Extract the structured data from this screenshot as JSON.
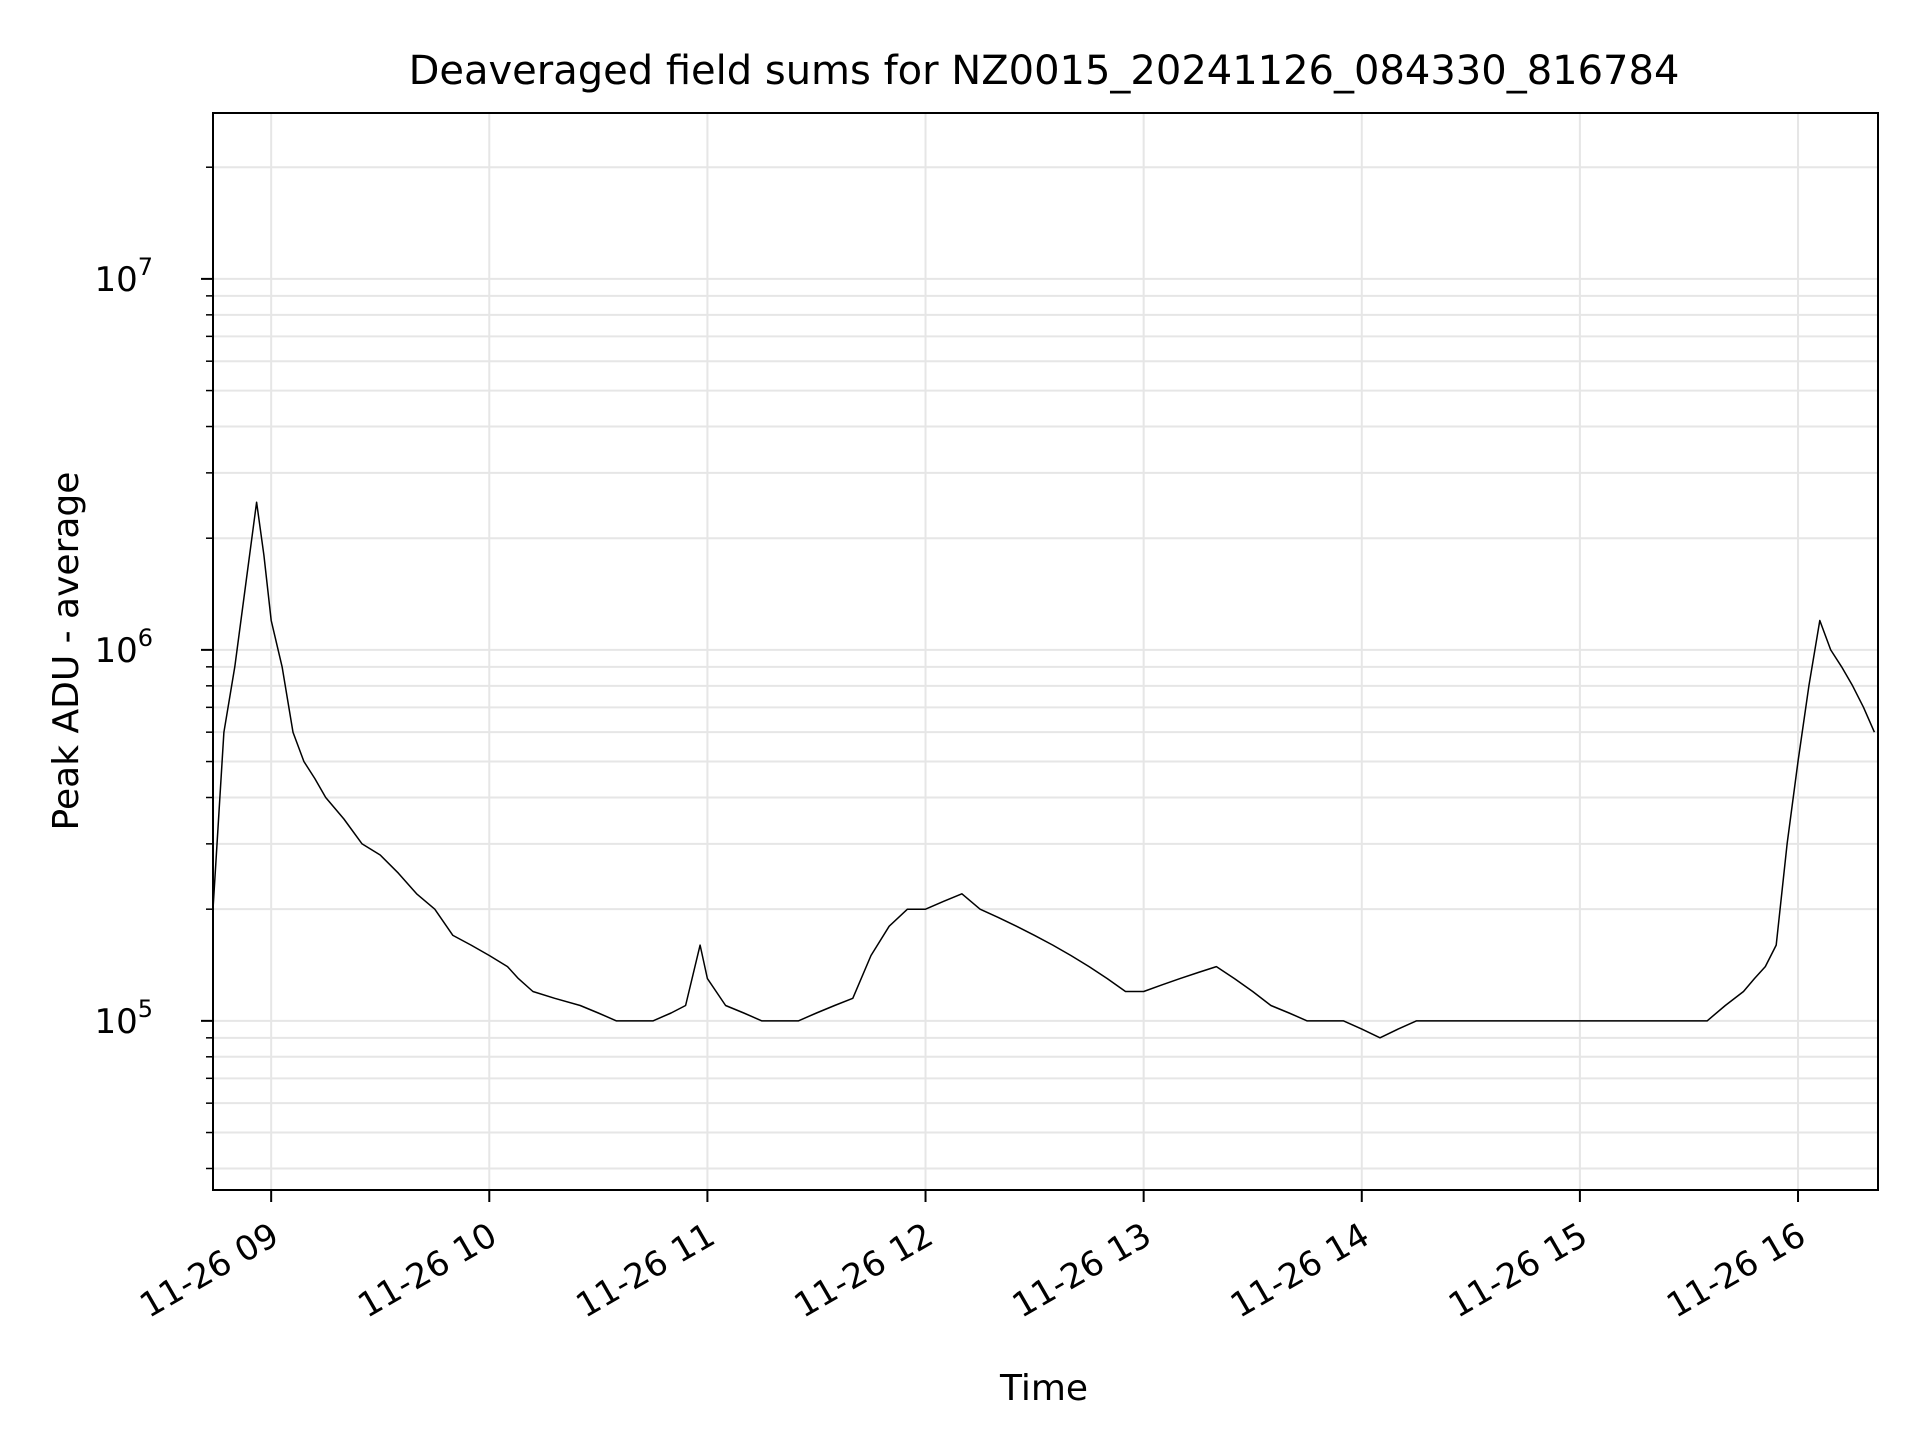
{
  "chart_data": {
    "type": "line",
    "title": "Deaveraged field sums for NZ0015_20241126_084330_816784",
    "xlabel": "Time",
    "ylabel": "Peak ADU - average",
    "yscale": "log",
    "xlim": [
      "2024-11-26 08:44",
      "2024-11-26 16:22"
    ],
    "ylim": [
      35000,
      28000000
    ],
    "grid": true,
    "line_color": "#000000",
    "x_ticks": [
      {
        "value": "2024-11-26 09:00",
        "label": "11-26 09"
      },
      {
        "value": "2024-11-26 10:00",
        "label": "11-26 10"
      },
      {
        "value": "2024-11-26 11:00",
        "label": "11-26 11"
      },
      {
        "value": "2024-11-26 12:00",
        "label": "11-26 12"
      },
      {
        "value": "2024-11-26 13:00",
        "label": "11-26 13"
      },
      {
        "value": "2024-11-26 14:00",
        "label": "11-26 14"
      },
      {
        "value": "2024-11-26 15:00",
        "label": "11-26 15"
      },
      {
        "value": "2024-11-26 16:00",
        "label": "11-26 16"
      }
    ],
    "y_ticks": [
      {
        "value": 100000,
        "base": "10",
        "exp": "5"
      },
      {
        "value": 1000000,
        "base": "10",
        "exp": "6"
      },
      {
        "value": 10000000,
        "base": "10",
        "exp": "7"
      }
    ],
    "series": [
      {
        "x": [
          "2024-11-26 08:44",
          "2024-11-26 08:47",
          "2024-11-26 08:50",
          "2024-11-26 08:53",
          "2024-11-26 08:56",
          "2024-11-26 08:58",
          "2024-11-26 09:00",
          "2024-11-26 09:03",
          "2024-11-26 09:06",
          "2024-11-26 09:09",
          "2024-11-26 09:12",
          "2024-11-26 09:15",
          "2024-11-26 09:20",
          "2024-11-26 09:25",
          "2024-11-26 09:30",
          "2024-11-26 09:35",
          "2024-11-26 09:40",
          "2024-11-26 09:45",
          "2024-11-26 09:50",
          "2024-11-26 09:55",
          "2024-11-26 10:00",
          "2024-11-26 10:05",
          "2024-11-26 10:08",
          "2024-11-26 10:12",
          "2024-11-26 10:18",
          "2024-11-26 10:25",
          "2024-11-26 10:30",
          "2024-11-26 10:35",
          "2024-11-26 10:40",
          "2024-11-26 10:45",
          "2024-11-26 10:50",
          "2024-11-26 10:54",
          "2024-11-26 10:58",
          "2024-11-26 11:00",
          "2024-11-26 11:05",
          "2024-11-26 11:10",
          "2024-11-26 11:15",
          "2024-11-26 11:20",
          "2024-11-26 11:25",
          "2024-11-26 11:30",
          "2024-11-26 11:35",
          "2024-11-26 11:40",
          "2024-11-26 11:45",
          "2024-11-26 11:50",
          "2024-11-26 11:55",
          "2024-11-26 12:00",
          "2024-11-26 12:05",
          "2024-11-26 12:10",
          "2024-11-26 12:15",
          "2024-11-26 12:20",
          "2024-11-26 12:25",
          "2024-11-26 12:30",
          "2024-11-26 12:35",
          "2024-11-26 12:40",
          "2024-11-26 12:45",
          "2024-11-26 12:50",
          "2024-11-26 12:55",
          "2024-11-26 13:00",
          "2024-11-26 13:05",
          "2024-11-26 13:10",
          "2024-11-26 13:15",
          "2024-11-26 13:20",
          "2024-11-26 13:25",
          "2024-11-26 13:30",
          "2024-11-26 13:35",
          "2024-11-26 13:40",
          "2024-11-26 13:45",
          "2024-11-26 13:50",
          "2024-11-26 13:55",
          "2024-11-26 14:00",
          "2024-11-26 14:05",
          "2024-11-26 14:10",
          "2024-11-26 14:15",
          "2024-11-26 14:20",
          "2024-11-26 14:25",
          "2024-11-26 14:30",
          "2024-11-26 14:35",
          "2024-11-26 14:40",
          "2024-11-26 14:45",
          "2024-11-26 14:50",
          "2024-11-26 14:55",
          "2024-11-26 15:00",
          "2024-11-26 15:05",
          "2024-11-26 15:10",
          "2024-11-26 15:15",
          "2024-11-26 15:20",
          "2024-11-26 15:25",
          "2024-11-26 15:30",
          "2024-11-26 15:35",
          "2024-11-26 15:40",
          "2024-11-26 15:45",
          "2024-11-26 15:48",
          "2024-11-26 15:51",
          "2024-11-26 15:54",
          "2024-11-26 15:57",
          "2024-11-26 16:00",
          "2024-11-26 16:03",
          "2024-11-26 16:06",
          "2024-11-26 16:09",
          "2024-11-26 16:12",
          "2024-11-26 16:15",
          "2024-11-26 16:18",
          "2024-11-26 16:21"
        ],
        "y": [
          200000,
          600000,
          900000,
          1500000,
          2500000,
          1800000,
          1200000,
          900000,
          600000,
          500000,
          450000,
          400000,
          350000,
          300000,
          280000,
          250000,
          220000,
          200000,
          170000,
          160000,
          150000,
          140000,
          130000,
          120000,
          115000,
          110000,
          105000,
          100000,
          100000,
          100000,
          105000,
          110000,
          160000,
          130000,
          110000,
          105000,
          100000,
          100000,
          100000,
          105000,
          110000,
          115000,
          150000,
          180000,
          200000,
          200000,
          210000,
          220000,
          200000,
          190000,
          180000,
          170000,
          160000,
          150000,
          140000,
          130000,
          120000,
          120000,
          125000,
          130000,
          135000,
          140000,
          130000,
          120000,
          110000,
          105000,
          100000,
          100000,
          100000,
          95000,
          90000,
          95000,
          100000,
          100000,
          100000,
          100000,
          100000,
          100000,
          100000,
          100000,
          100000,
          100000,
          100000,
          100000,
          100000,
          100000,
          100000,
          100000,
          100000,
          110000,
          120000,
          130000,
          140000,
          160000,
          300000,
          500000,
          800000,
          1200000,
          1000000,
          900000,
          800000,
          700000,
          600000
        ]
      }
    ]
  }
}
